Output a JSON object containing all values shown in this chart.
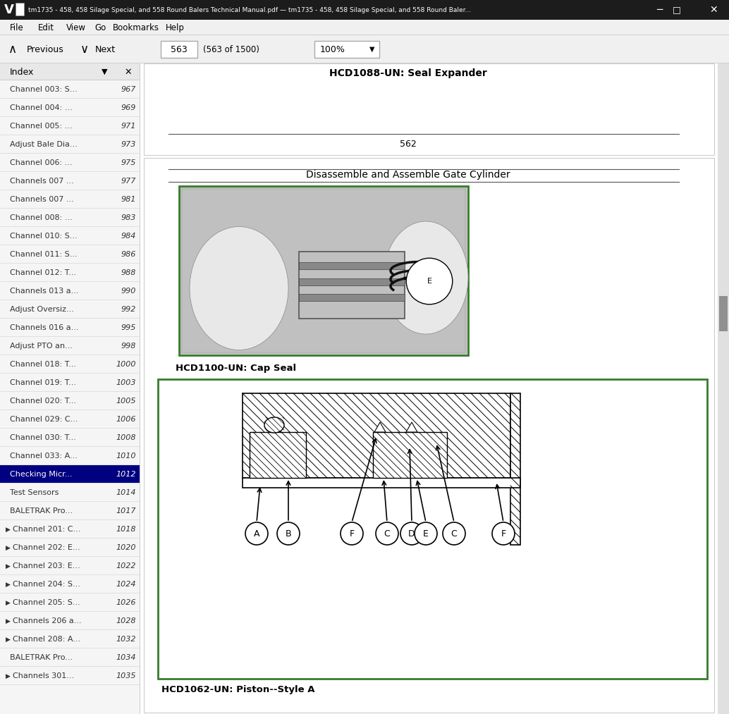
{
  "title": "tm1735 - 458, 458 Silage Special, and 558 Round Balers Technical Manual.pdf — tm1735 - 458, 458 Silage Special, and 558 Round Baler...",
  "page_nav": "563",
  "page_nav_total": "(563 of 1500)",
  "zoom_level": "100%",
  "sidebar_items": [
    [
      "Channel 003: S...",
      "967",
      false
    ],
    [
      "Channel 004: ...",
      "969",
      false
    ],
    [
      "Channel 005: ...",
      "971",
      false
    ],
    [
      "Adjust Bale Dia...",
      "973",
      false
    ],
    [
      "Channel 006: ...",
      "975",
      false
    ],
    [
      "Channels 007 ...",
      "977",
      false
    ],
    [
      "Channels 007 ...",
      "981",
      false
    ],
    [
      "Channel 008: ...",
      "983",
      false
    ],
    [
      "Channel 010: S...",
      "984",
      false
    ],
    [
      "Channel 011: S...",
      "986",
      false
    ],
    [
      "Channel 012: T...",
      "988",
      false
    ],
    [
      "Channels 013 a...",
      "990",
      false
    ],
    [
      "Adjust Oversiz...",
      "992",
      false
    ],
    [
      "Channels 016 a...",
      "995",
      false
    ],
    [
      "Adjust PTO an...",
      "998",
      false
    ],
    [
      "Channel 018: T...",
      "1000",
      false
    ],
    [
      "Channel 019: T...",
      "1003",
      false
    ],
    [
      "Channel 020: T...",
      "1005",
      false
    ],
    [
      "Channel 029: C...",
      "1006",
      false
    ],
    [
      "Channel 030: T...",
      "1008",
      false
    ],
    [
      "Channel 033: A...",
      "1010",
      false
    ],
    [
      "Checking Micr...",
      "1012",
      false
    ],
    [
      "Test Sensors",
      "1014",
      false
    ],
    [
      "BALETRAK Pro...",
      "1017",
      false
    ],
    [
      "Channel 201: C...",
      "1018",
      true
    ],
    [
      "Channel 202: E...",
      "1020",
      true
    ],
    [
      "Channel 203: E...",
      "1022",
      true
    ],
    [
      "Channel 204: S...",
      "1024",
      true
    ],
    [
      "Channel 205: S...",
      "1026",
      true
    ],
    [
      "Channels 206 a...",
      "1028",
      true
    ],
    [
      "Channel 208: A...",
      "1032",
      true
    ],
    [
      "BALETRAK Pro...",
      "1034",
      false
    ],
    [
      "Channels 301...",
      "1035",
      true
    ]
  ],
  "highlighted_item_idx": 21,
  "seal_expander_label": "HCD1088-UN: Seal Expander",
  "page_number": "562",
  "section_title": "Disassemble and Assemble Gate Cylinder",
  "cap_seal_label": "HCD1100-UN: Cap Seal",
  "piston_label": "HCD1062-UN: Piston--Style A",
  "green_border": "#367c2b",
  "titlebar_bg": "#1c1c1c",
  "menubar_bg": "#f0f0f0",
  "navbar_bg": "#f0f0f0",
  "sidebar_bg": "#f5f5f5",
  "sidebar_highlight_bg": "#000080",
  "content_bg": "#ffffff",
  "scrollbar_bg": "#d0d0d0",
  "scrollbar_thumb": "#909090"
}
